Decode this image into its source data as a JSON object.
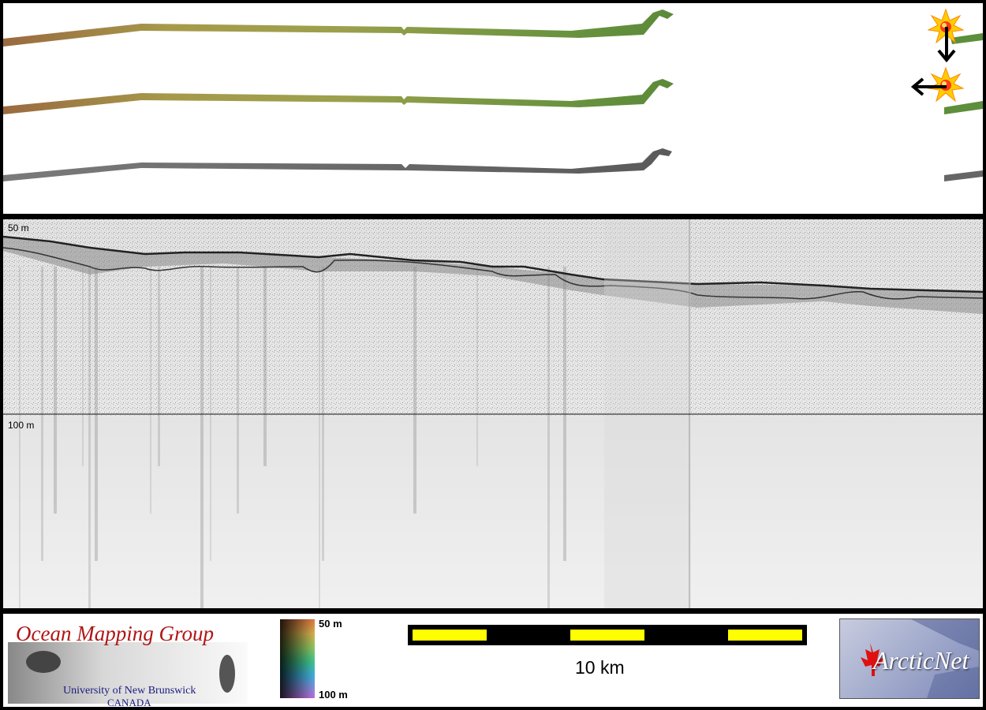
{
  "profile": {
    "depth_label_top": "50 m",
    "depth_label_bottom": "100 m"
  },
  "footer": {
    "omg_title": "Ocean Mapping Group",
    "omg_university": "University of New Brunswick",
    "omg_country": "CANADA",
    "colorbar_top": "50 m",
    "colorbar_bottom": "100 m",
    "scale_label": "10 km",
    "arcticnet_text": "ArcticNet"
  },
  "colors": {
    "background": "#000000",
    "scale_yellow": "#ffff00",
    "omg_red": "#b01515",
    "omg_blue": "#1a1a80"
  }
}
